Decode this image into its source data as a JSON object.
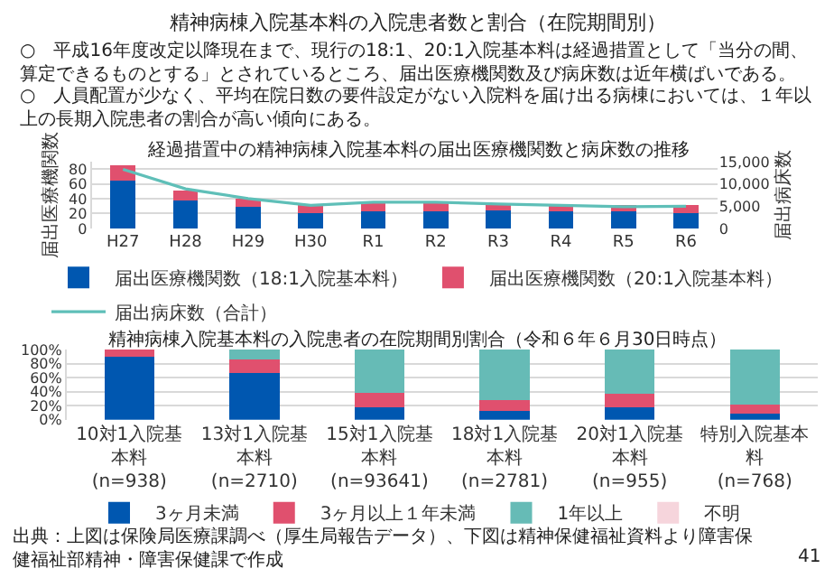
{
  "chart_data": [
    {
      "type": "bar",
      "title": "経過措置中の精神病棟入院基本料の届出医療機関数と病床数の推移",
      "ylabel": "届出医療機関数",
      "y2label": "届出病床数",
      "annotations": [
        "精神病棟入院基本料の入院患者数と割合（在院期間別）",
        "○　平成16年度改定以降現在まで、現行の18:1、20:1入院基本料は経過措置として「当分の間、算定できるものとする」とされているところ、届出医療機関数及び病床数は近年横ばいである。",
        "○　人員配置が少なく、平均在院日数の要件設定がない入院料を届け出る病棟においては、１年以上の長期入院患者の割合が高い傾向にある。"
      ],
      "categories": [
        "H27",
        "H28",
        "H29",
        "H30",
        "R1",
        "R2",
        "R3",
        "R4",
        "R5",
        "R6"
      ],
      "stacked": true,
      "series": [
        {
          "name": "届出医療機関数（18:1入院基本料）",
          "color": "#0057b0",
          "values": [
            64,
            38,
            29,
            20,
            23,
            23,
            24,
            23,
            23,
            21
          ]
        },
        {
          "name": "届出医療機関数（20:1入院基本料）",
          "color": "#e0506e",
          "values": [
            21,
            13,
            11,
            11,
            11,
            12,
            8,
            8,
            9,
            10
          ]
        },
        {
          "name": "届出病床数（合計）",
          "color": "#5fbfb8",
          "type": "line",
          "axis": "y2",
          "values": [
            13300,
            8900,
            6700,
            5200,
            5900,
            5900,
            5500,
            5200,
            4900,
            5000
          ]
        }
      ],
      "ylim": [
        0,
        90
      ],
      "yticks": [
        0,
        20,
        40,
        60,
        80
      ],
      "y2lim": [
        0,
        15000
      ],
      "y2ticks": [
        0,
        {
          "value": 5000,
          "label": "5,000"
        },
        {
          "value": 10000,
          "label": "10,000"
        },
        {
          "value": 15000,
          "label": "15,000"
        }
      ],
      "grid": "y",
      "legend": "bottom"
    },
    {
      "type": "bar",
      "title": "精神病棟入院基本料の入院患者の在院期間別割合（令和６年６月30日時点）",
      "annotations": [
        "出典：上図は保険局医療課調べ（厚生局報告データ）、下図は精神保健福祉資料より障害保健福祉部精神・障害保健課で作成",
        "41"
      ],
      "categories": [
        "10対1入院基本料\n(n=938)",
        "13対1入院基本料\n(n=2710)",
        "15対1入院基本料\n(n=93641)",
        "18対1入院基本料\n(n=2781)",
        "20対1入院基本料\n(n=955)",
        "特別入院基本料\n(n=768)"
      ],
      "stacked": true,
      "series": [
        {
          "name": "3ヶ月未満",
          "color": "#0057b0",
          "values": [
            90,
            67,
            18,
            12,
            18,
            9
          ]
        },
        {
          "name": "3ヶ月以上１年未満",
          "color": "#e0506e",
          "values": [
            10,
            19,
            20,
            16,
            19,
            13
          ]
        },
        {
          "name": "1年以上",
          "color": "#66bbb6",
          "values": [
            0,
            14,
            62,
            72,
            63,
            78
          ]
        },
        {
          "name": "不明",
          "color": "#f6d5dc",
          "values": [
            0,
            0,
            0,
            0,
            0,
            0
          ]
        }
      ],
      "ylim": [
        0,
        100
      ],
      "yticks": [
        {
          "value": 0,
          "label": "0%"
        },
        {
          "value": 20,
          "label": "20%"
        },
        {
          "value": 40,
          "label": "40%"
        },
        {
          "value": 60,
          "label": "60%"
        },
        {
          "value": 80,
          "label": "80%"
        },
        {
          "value": 100,
          "label": "100%"
        }
      ],
      "grid": "y",
      "legend": "bottom"
    }
  ]
}
